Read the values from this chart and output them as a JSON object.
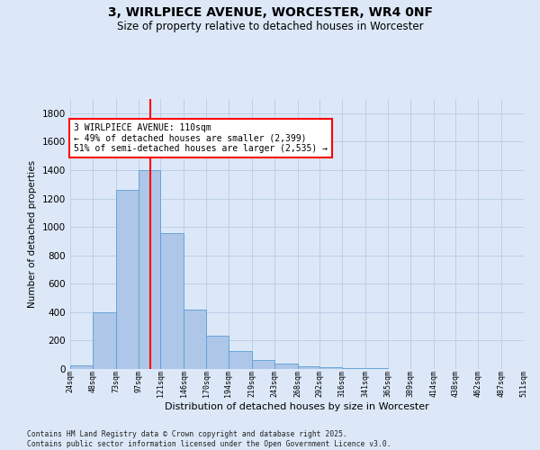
{
  "title": "3, WIRLPIECE AVENUE, WORCESTER, WR4 0NF",
  "subtitle": "Size of property relative to detached houses in Worcester",
  "xlabel": "Distribution of detached houses by size in Worcester",
  "ylabel": "Number of detached properties",
  "bar_color": "#aec6e8",
  "bar_edge_color": "#5a9fd4",
  "background_color": "#dce8f8",
  "grid_color": "#b8cce4",
  "vline_color": "red",
  "vline_x": 110,
  "annotation_text": "3 WIRLPIECE AVENUE: 110sqm\n← 49% of detached houses are smaller (2,399)\n51% of semi-detached houses are larger (2,535) →",
  "annotation_box_color": "white",
  "annotation_box_edge": "red",
  "footnote": "Contains HM Land Registry data © Crown copyright and database right 2025.\nContains public sector information licensed under the Open Government Licence v3.0.",
  "bin_edges": [
    24,
    48,
    73,
    97,
    121,
    146,
    170,
    194,
    219,
    243,
    268,
    292,
    316,
    341,
    365,
    389,
    414,
    438,
    462,
    487,
    511
  ],
  "bin_labels": [
    "24sqm",
    "48sqm",
    "73sqm",
    "97sqm",
    "121sqm",
    "146sqm",
    "170sqm",
    "194sqm",
    "219sqm",
    "243sqm",
    "268sqm",
    "292sqm",
    "316sqm",
    "341sqm",
    "365sqm",
    "389sqm",
    "414sqm",
    "438sqm",
    "462sqm",
    "487sqm",
    "511sqm"
  ],
  "bar_heights": [
    25,
    400,
    1260,
    1400,
    955,
    415,
    235,
    125,
    65,
    40,
    20,
    15,
    5,
    5,
    0,
    0,
    0,
    0,
    0,
    0
  ],
  "ylim": [
    0,
    1900
  ],
  "yticks": [
    0,
    200,
    400,
    600,
    800,
    1000,
    1200,
    1400,
    1600,
    1800
  ]
}
